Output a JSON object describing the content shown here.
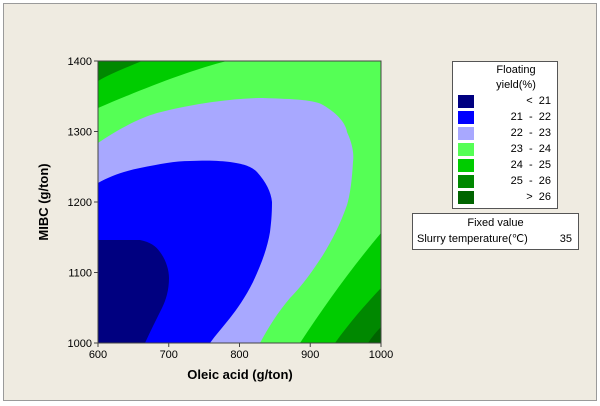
{
  "chart_data": {
    "type": "contour",
    "title": "",
    "xlabel": "Oleic acid (g/ton)",
    "ylabel": "MIBC (g/ton)",
    "xlim": [
      600,
      1000
    ],
    "ylim": [
      1000,
      1400
    ],
    "xticks": [
      "600",
      "700",
      "800",
      "900",
      "1000"
    ],
    "yticks": [
      "1000",
      "1100",
      "1200",
      "1300",
      "1400"
    ],
    "legend": {
      "title_line1": "Floating",
      "title_line2": "yield(%)",
      "placement": "right",
      "entries": [
        {
          "label": "<  21",
          "color": "#000080"
        },
        {
          "label": "21  -  22",
          "color": "#0000ff"
        },
        {
          "label": "22  -  23",
          "color": "#a8a8ff"
        },
        {
          "label": "23  -  24",
          "color": "#55ff55"
        },
        {
          "label": "24  -  25",
          "color": "#00cc00"
        },
        {
          "label": "25  -  26",
          "color": "#008800"
        },
        {
          "label": ">  26",
          "color": "#006400"
        }
      ]
    },
    "fixed_value": {
      "title": "Fixed value",
      "variable": "Slurry temperature(℃)",
      "value": "35"
    }
  }
}
